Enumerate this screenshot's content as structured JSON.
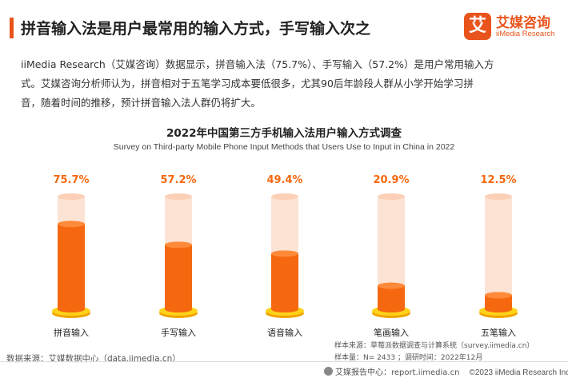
{
  "header": {
    "headline": "拼音输入法是用户最常用的输入方式，手写输入次之"
  },
  "logo": {
    "mark": "艾",
    "cn": "艾媒咨询",
    "en": "iiMedia Research"
  },
  "description": {
    "lines": [
      "iiMedia Research（艾媒咨询）数据显示，拼音输入法（75.7%）、手写输入（57.2%）是用户常用输入方",
      "式。艾媒咨询分析师认为，拼音相对于五笔学习成本要低很多，尤其90后年龄段人群从小学开始学习拼",
      "音，随着时间的推移，预计拼音输入法人群仍将扩大。"
    ]
  },
  "chart_data": {
    "type": "bar",
    "title": "2022年中国第三方手机输入法用户输入方式调查",
    "subtitle": "Survey on Third-party Mobile Phone Input Methods that Users Use to Input in China in 2022",
    "categories": [
      "拼音输入",
      "手写输入",
      "语音输入",
      "笔画输入",
      "五笔输入"
    ],
    "values": [
      75.7,
      57.2,
      49.4,
      20.9,
      12.5
    ],
    "value_labels": [
      "75.7%",
      "57.2%",
      "49.4%",
      "20.9%",
      "12.5%"
    ],
    "unit": "%",
    "ylim": [
      0,
      100
    ],
    "xlabel": "",
    "ylabel": "",
    "grid": false,
    "colors": {
      "fill": "#f5680f",
      "fill_top": "#ff8a3a",
      "tube": "#fde3d3",
      "tube_edge": "#fbd0b6",
      "base_top": "#ffd21a",
      "base_side": "#f0a400",
      "label": "#f5680f"
    }
  },
  "notes": {
    "source": "数据来源：艾媒数据中心（data.iimedia.cn）",
    "sample_source": "样本来源：草莓派数据调查与计算系统（survey.iimedia.cn）",
    "sample_info": "样本量：N= 2433 ；调研时间：2022年12月"
  },
  "footer": {
    "report_site": "艾媒报告中心：report.iimedia.cn",
    "copyright": "©2023   iiMedia Research  Inc"
  }
}
